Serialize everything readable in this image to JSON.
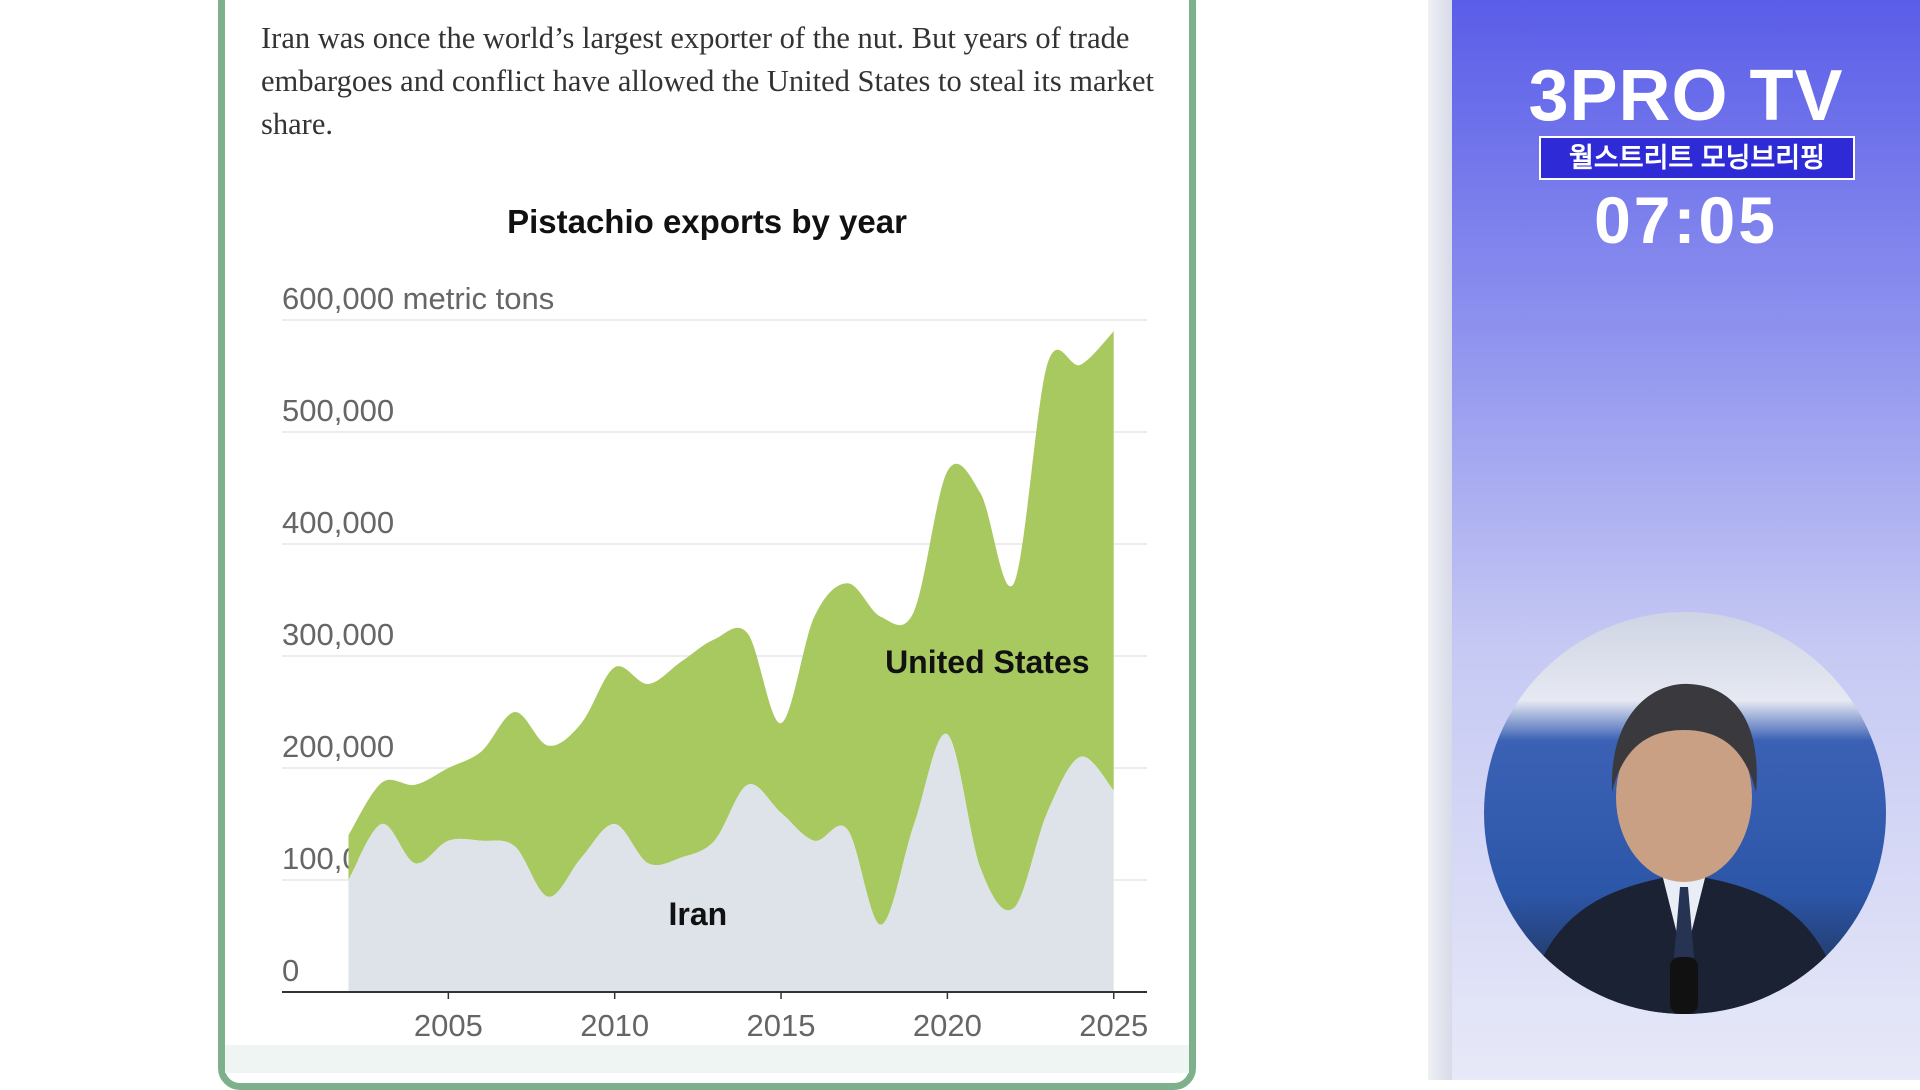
{
  "article": {
    "intro": "Iran was once the world’s largest exporter of the nut. But years of trade embargoes and conflict have allowed the United States to steal its market share."
  },
  "chart_data": {
    "type": "area",
    "title": "Pistachio exports by year",
    "ylabel": "metric tons",
    "ylim": [
      0,
      600000
    ],
    "xlim": [
      2000,
      2026
    ],
    "y_ticks": [
      0,
      100000,
      200000,
      300000,
      400000,
      500000,
      600000
    ],
    "y_tick_labels": [
      "0",
      "100,000",
      "200,000",
      "300,000",
      "400,000",
      "500,000",
      "600,000 metric tons"
    ],
    "x_ticks": [
      2005,
      2010,
      2015,
      2020,
      2025
    ],
    "x_tick_labels": [
      "2005",
      "2010",
      "2015",
      "2020",
      "2025"
    ],
    "x": [
      2002,
      2003,
      2004,
      2005,
      2006,
      2007,
      2008,
      2009,
      2010,
      2011,
      2012,
      2013,
      2014,
      2015,
      2016,
      2017,
      2018,
      2019,
      2020,
      2021,
      2022,
      2023,
      2024,
      2025
    ],
    "stacked": true,
    "series": [
      {
        "name": "Iran",
        "values": [
          100000,
          150000,
          115000,
          135000,
          135000,
          130000,
          85000,
          120000,
          150000,
          115000,
          120000,
          135000,
          185000,
          160000,
          135000,
          145000,
          60000,
          150000,
          230000,
          110000,
          75000,
          160000,
          210000,
          180000
        ]
      },
      {
        "name": "United States",
        "values": [
          40000,
          37000,
          70000,
          65000,
          80000,
          120000,
          135000,
          120000,
          140000,
          160000,
          175000,
          180000,
          135000,
          80000,
          200000,
          220000,
          275000,
          190000,
          235000,
          335000,
          290000,
          400000,
          350000,
          410000
        ]
      }
    ],
    "annotations": [
      "United States",
      "Iran"
    ],
    "colors": {
      "United States": "#a8c95f",
      "Iran": "#dde3e8"
    }
  },
  "sidebar": {
    "channel_name": "3PRO TV",
    "program_title": "월스트리트 모닝브리핑",
    "time": "07:05"
  }
}
